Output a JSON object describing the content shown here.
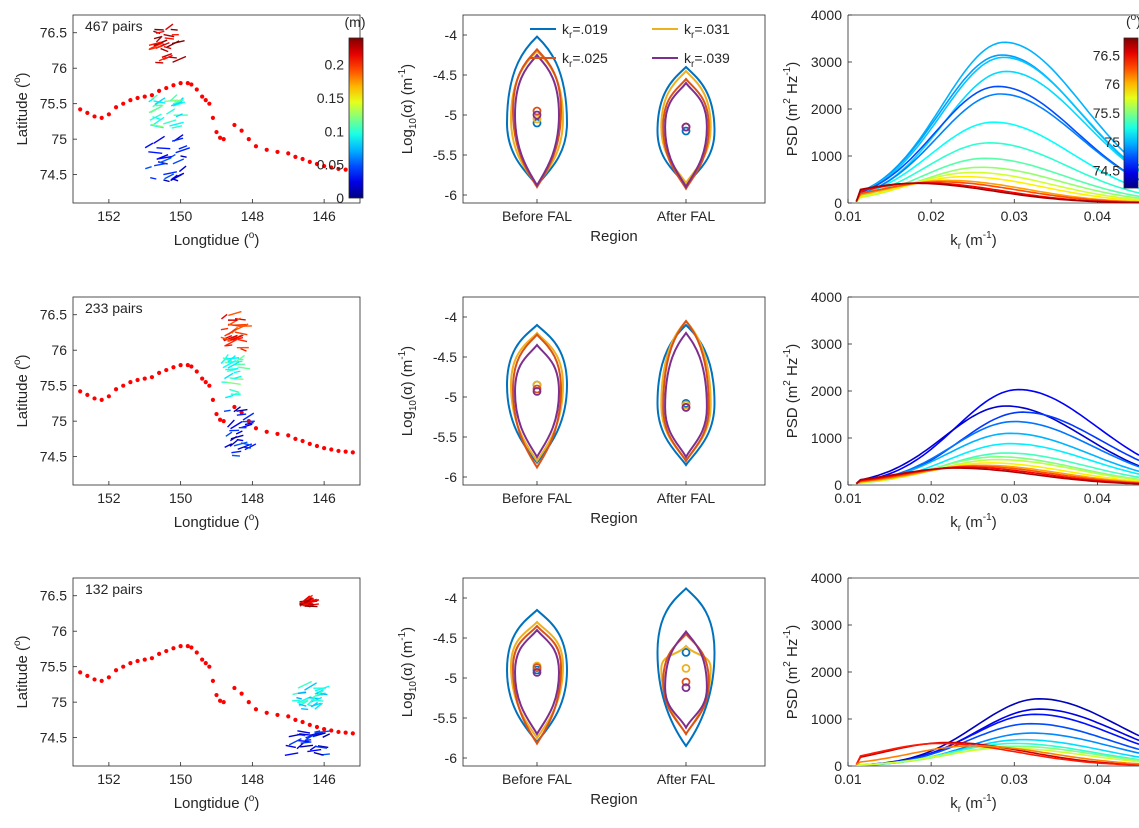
{
  "chart_data": [
    {
      "type": "scatter",
      "panel": "track-row1",
      "annotation": "467 pairs",
      "xlabel": "Longtidue (o)",
      "xlabel_main": "Longtidue (",
      "xlabel_sup": "o",
      "xlabel_end": ")",
      "ylabel_main": "Latitude (",
      "ylabel_sup": "o",
      "ylabel_end": ")",
      "xlim": [
        153,
        145
      ],
      "ylim": [
        74.1,
        76.75
      ],
      "xticks": [
        152,
        150,
        148,
        146
      ],
      "yticks": [
        74.5,
        75,
        75.5,
        76,
        76.5
      ],
      "colorbar": {
        "title": "(m)",
        "range": [
          0,
          0.24
        ],
        "ticks": [
          0,
          0.05,
          0.1,
          0.15,
          0.2
        ],
        "tick_labels": [
          "0",
          "0.05",
          "0.1",
          "0.15",
          "0.2"
        ],
        "colormap": "jet"
      },
      "ship_track_color": "#ff0000",
      "clusters": [
        {
          "lon": [
            150.2,
            150.9
          ],
          "lat": [
            76.05,
            76.55
          ],
          "value": 0.22
        },
        {
          "lon": [
            150.1,
            150.9
          ],
          "lat": [
            75.1,
            75.6
          ],
          "value": 0.1
        },
        {
          "lon": [
            150.0,
            151.0
          ],
          "lat": [
            74.4,
            75.0
          ],
          "value": 0.03
        }
      ]
    },
    {
      "type": "violin",
      "panel": "violin-row1",
      "categories": [
        "Before FAL",
        "After FAL"
      ],
      "xlabel": "Region",
      "ylabel_main": "Log",
      "ylabel_sub": "10",
      "ylabel_mid": "(α) (m",
      "ylabel_sup": "-1",
      "ylabel_end": ")",
      "ylim": [
        -6.1,
        -3.75
      ],
      "yticks": [
        -6,
        -5.5,
        -5,
        -4.5,
        -4
      ],
      "legend": [
        "k_r=.019",
        "k_r=.031",
        "k_r=.025",
        "k_r=.039"
      ],
      "legend_labels": [
        {
          "k": "k",
          "sub": "r",
          "val": "=.019"
        },
        {
          "k": "k",
          "sub": "r",
          "val": "=.031"
        },
        {
          "k": "k",
          "sub": "r",
          "val": "=.025"
        },
        {
          "k": "k",
          "sub": "r",
          "val": "=.039"
        }
      ],
      "legend_placement": "top-right",
      "series": [
        {
          "name": "k_r=.019",
          "color": "#0072bd",
          "before": {
            "min": -5.88,
            "max": -4.02,
            "median": -5.1
          },
          "after": {
            "min": -5.88,
            "max": -4.4,
            "median": -5.2
          }
        },
        {
          "name": "k_r=.031",
          "color": "#edb120",
          "before": {
            "min": -5.88,
            "max": -4.2,
            "median": -5.05
          },
          "after": {
            "min": -5.85,
            "max": -4.45,
            "median": -5.15
          }
        },
        {
          "name": "k_r=.025",
          "color": "#d95319",
          "before": {
            "min": -5.9,
            "max": -4.18,
            "median": -4.95
          },
          "after": {
            "min": -5.92,
            "max": -4.55,
            "median": -5.15
          }
        },
        {
          "name": "k_r=.039",
          "color": "#7e2f8e",
          "before": {
            "min": -5.88,
            "max": -4.25,
            "median": -5.0
          },
          "after": {
            "min": -5.9,
            "max": -4.6,
            "median": -5.15
          }
        }
      ]
    },
    {
      "type": "line",
      "panel": "psd-row1",
      "xlabel_main": "k",
      "xlabel_sub": "r",
      "xlabel_end": " (m",
      "xlabel_sup": "-1",
      "xlabel_close": ")",
      "ylabel_main": "PSD (m",
      "ylabel_sup": "2",
      "ylabel_mid": " Hz",
      "ylabel_sup2": "-1",
      "ylabel_end": ")",
      "xlim": [
        0.01,
        0.045
      ],
      "ylim": [
        0,
        4000
      ],
      "xticks": [
        0.01,
        0.02,
        0.03,
        0.04
      ],
      "yticks": [
        0,
        1000,
        2000,
        3000,
        4000
      ],
      "colorbar": {
        "title": "(o)",
        "range": [
          74.2,
          76.8
        ],
        "ticks": [
          74.5,
          75,
          75.5,
          76,
          76.5
        ],
        "tick_labels": [
          "74.5",
          "75",
          "75.5",
          "76",
          "76.5"
        ],
        "colormap": "jet"
      },
      "series": [
        {
          "peak_k": 0.0288,
          "peak": 3420,
          "c": 0.3
        },
        {
          "peak_k": 0.0285,
          "peak": 3150,
          "c": 0.28
        },
        {
          "peak_k": 0.0287,
          "peak": 3100,
          "c": 0.32
        },
        {
          "peak_k": 0.029,
          "peak": 2800,
          "c": 0.34
        },
        {
          "peak_k": 0.028,
          "peak": 2480,
          "c": 0.2
        },
        {
          "peak_k": 0.0283,
          "peak": 2320,
          "c": 0.25
        },
        {
          "peak_k": 0.0275,
          "peak": 1720,
          "c": 0.38
        },
        {
          "peak_k": 0.027,
          "peak": 1280,
          "c": 0.42
        },
        {
          "peak_k": 0.0265,
          "peak": 950,
          "c": 0.46
        },
        {
          "peak_k": 0.026,
          "peak": 760,
          "c": 0.52
        },
        {
          "peak_k": 0.025,
          "peak": 650,
          "c": 0.58
        },
        {
          "peak_k": 0.024,
          "peak": 560,
          "c": 0.64
        },
        {
          "peak_k": 0.022,
          "peak": 480,
          "c": 0.72
        },
        {
          "peak_k": 0.021,
          "peak": 450,
          "c": 0.8
        },
        {
          "peak_k": 0.019,
          "peak": 430,
          "c": 0.88
        },
        {
          "peak_k": 0.018,
          "peak": 420,
          "c": 0.96
        }
      ]
    },
    {
      "type": "scatter",
      "panel": "track-row2",
      "annotation": "233 pairs",
      "xlabel_main": "Longtidue (",
      "xlabel_sup": "o",
      "xlabel_end": ")",
      "ylabel_main": "Latitude (",
      "ylabel_sup": "o",
      "ylabel_end": ")",
      "xlim": [
        153,
        145
      ],
      "ylim": [
        74.1,
        76.75
      ],
      "xticks": [
        152,
        150,
        148,
        146
      ],
      "yticks": [
        74.5,
        75,
        75.5,
        76,
        76.5
      ],
      "clusters": [
        {
          "lon": [
            148.3,
            148.9
          ],
          "lat": [
            76.0,
            76.5
          ],
          "value": 0.2
        },
        {
          "lon": [
            148.4,
            148.9
          ],
          "lat": [
            75.3,
            75.9
          ],
          "value": 0.1
        },
        {
          "lon": [
            148.2,
            148.8
          ],
          "lat": [
            74.5,
            75.2
          ],
          "value": 0.03
        }
      ]
    },
    {
      "type": "violin",
      "panel": "violin-row2",
      "categories": [
        "Before FAL",
        "After FAL"
      ],
      "xlabel": "Region",
      "ylabel_main": "Log",
      "ylabel_sub": "10",
      "ylabel_mid": "(α) (m",
      "ylabel_sup": "-1",
      "ylabel_end": ")",
      "ylim": [
        -6.1,
        -3.75
      ],
      "yticks": [
        -6,
        -5.5,
        -5,
        -4.5,
        -4
      ],
      "series": [
        {
          "name": "k_r=.019",
          "color": "#0072bd",
          "before": {
            "min": -5.82,
            "max": -4.1,
            "median": -4.85
          },
          "after": {
            "min": -5.85,
            "max": -4.1,
            "median": -5.08
          }
        },
        {
          "name": "k_r=.031",
          "color": "#edb120",
          "before": {
            "min": -5.8,
            "max": -4.2,
            "median": -4.85
          },
          "after": {
            "min": -5.8,
            "max": -4.05,
            "median": -5.1
          }
        },
        {
          "name": "k_r=.025",
          "color": "#d95319",
          "before": {
            "min": -5.88,
            "max": -4.22,
            "median": -4.9
          },
          "after": {
            "min": -5.8,
            "max": -4.05,
            "median": -5.13
          }
        },
        {
          "name": "k_r=.039",
          "color": "#7e2f8e",
          "before": {
            "min": -5.75,
            "max": -4.35,
            "median": -4.93
          },
          "after": {
            "min": -5.75,
            "max": -4.2,
            "median": -5.13
          }
        }
      ]
    },
    {
      "type": "line",
      "panel": "psd-row2",
      "xlabel_main": "k",
      "xlabel_sub": "r",
      "xlabel_end": " (m",
      "xlabel_sup": "-1",
      "xlabel_close": ")",
      "ylabel_main": "PSD (m",
      "ylabel_sup": "2",
      "ylabel_mid": " Hz",
      "ylabel_sup2": "-1",
      "ylabel_end": ")",
      "xlim": [
        0.01,
        0.045
      ],
      "ylim": [
        0,
        4000
      ],
      "xticks": [
        0.01,
        0.02,
        0.03,
        0.04
      ],
      "yticks": [
        0,
        1000,
        2000,
        3000,
        4000
      ],
      "series": [
        {
          "peak_k": 0.0305,
          "peak": 2030,
          "c": 0.12
        },
        {
          "peak_k": 0.029,
          "peak": 1680,
          "c": 0.08
        },
        {
          "peak_k": 0.031,
          "peak": 1550,
          "c": 0.18
        },
        {
          "peak_k": 0.03,
          "peak": 1350,
          "c": 0.24
        },
        {
          "peak_k": 0.0295,
          "peak": 1100,
          "c": 0.3
        },
        {
          "peak_k": 0.0295,
          "peak": 880,
          "c": 0.36
        },
        {
          "peak_k": 0.029,
          "peak": 680,
          "c": 0.44
        },
        {
          "peak_k": 0.028,
          "peak": 600,
          "c": 0.5
        },
        {
          "peak_k": 0.028,
          "peak": 540,
          "c": 0.56
        },
        {
          "peak_k": 0.027,
          "peak": 470,
          "c": 0.64
        },
        {
          "peak_k": 0.026,
          "peak": 420,
          "c": 0.72
        },
        {
          "peak_k": 0.025,
          "peak": 400,
          "c": 0.8
        },
        {
          "peak_k": 0.024,
          "peak": 380,
          "c": 0.88
        },
        {
          "peak_k": 0.023,
          "peak": 360,
          "c": 0.95
        }
      ]
    },
    {
      "type": "scatter",
      "panel": "track-row3",
      "annotation": "132 pairs",
      "xlabel_main": "Longtidue (",
      "xlabel_sup": "o",
      "xlabel_end": ")",
      "ylabel_main": "Latitude (",
      "ylabel_sup": "o",
      "ylabel_end": ")",
      "xlim": [
        153,
        145
      ],
      "ylim": [
        74.1,
        76.75
      ],
      "xticks": [
        152,
        150,
        148,
        146
      ],
      "yticks": [
        74.5,
        75,
        75.5,
        76,
        76.5
      ],
      "clusters": [
        {
          "lon": [
            146.5,
            146.7
          ],
          "lat": [
            76.35,
            76.42
          ],
          "value": 0.22
        },
        {
          "lon": [
            146.2,
            146.9
          ],
          "lat": [
            74.9,
            75.2
          ],
          "value": 0.09
        },
        {
          "lon": [
            145.9,
            147.1
          ],
          "lat": [
            74.25,
            74.6
          ],
          "value": 0.03
        }
      ]
    },
    {
      "type": "violin",
      "panel": "violin-row3",
      "categories": [
        "Before FAL",
        "After FAL"
      ],
      "xlabel": "Region",
      "ylabel_main": "Log",
      "ylabel_sub": "10",
      "ylabel_mid": "(α) (m",
      "ylabel_sup": "-1",
      "ylabel_end": ")",
      "ylim": [
        -6.1,
        -3.75
      ],
      "yticks": [
        -6,
        -5.5,
        -5,
        -4.5,
        -4
      ],
      "series": [
        {
          "name": "k_r=.019",
          "color": "#0072bd",
          "before": {
            "min": -5.8,
            "max": -4.15,
            "median": -4.9
          },
          "after": {
            "min": -5.85,
            "max": -3.88,
            "median": -4.68
          }
        },
        {
          "name": "k_r=.031",
          "color": "#edb120",
          "before": {
            "min": -5.75,
            "max": -4.3,
            "median": -4.85
          },
          "after": {
            "min": -5.7,
            "max": -4.6,
            "median": -4.88
          }
        },
        {
          "name": "k_r=.025",
          "color": "#d95319",
          "before": {
            "min": -5.82,
            "max": -4.35,
            "median": -4.87
          },
          "after": {
            "min": -5.7,
            "max": -4.45,
            "median": -5.05
          }
        },
        {
          "name": "k_r=.039",
          "color": "#7e2f8e",
          "before": {
            "min": -5.7,
            "max": -4.4,
            "median": -4.93
          },
          "after": {
            "min": -5.62,
            "max": -4.42,
            "median": -5.12
          }
        }
      ]
    },
    {
      "type": "line",
      "panel": "psd-row3",
      "xlabel_main": "k",
      "xlabel_sub": "r",
      "xlabel_end": " (m",
      "xlabel_sup": "-1",
      "xlabel_close": ")",
      "ylabel_main": "PSD (m",
      "ylabel_sup": "2",
      "ylabel_mid": " Hz",
      "ylabel_sup2": "-1",
      "ylabel_end": ")",
      "xlim": [
        0.01,
        0.045
      ],
      "ylim": [
        0,
        4000
      ],
      "xticks": [
        0.01,
        0.02,
        0.03,
        0.04
      ],
      "yticks": [
        0,
        1000,
        2000,
        3000,
        4000
      ],
      "series": [
        {
          "peak_k": 0.033,
          "peak": 1430,
          "c": 0.06
        },
        {
          "peak_k": 0.033,
          "peak": 1210,
          "c": 0.1
        },
        {
          "peak_k": 0.0325,
          "peak": 1100,
          "c": 0.14
        },
        {
          "peak_k": 0.032,
          "peak": 900,
          "c": 0.2
        },
        {
          "peak_k": 0.032,
          "peak": 700,
          "c": 0.26
        },
        {
          "peak_k": 0.031,
          "peak": 560,
          "c": 0.34
        },
        {
          "peak_k": 0.03,
          "peak": 480,
          "c": 0.42
        },
        {
          "peak_k": 0.03,
          "peak": 420,
          "c": 0.5
        },
        {
          "peak_k": 0.029,
          "peak": 380,
          "c": 0.58
        },
        {
          "peak_k": 0.022,
          "peak": 500,
          "c": 0.92
        },
        {
          "peak_k": 0.021,
          "peak": 480,
          "c": 0.85
        },
        {
          "peak_k": 0.025,
          "peak": 430,
          "c": 0.75
        }
      ]
    }
  ]
}
